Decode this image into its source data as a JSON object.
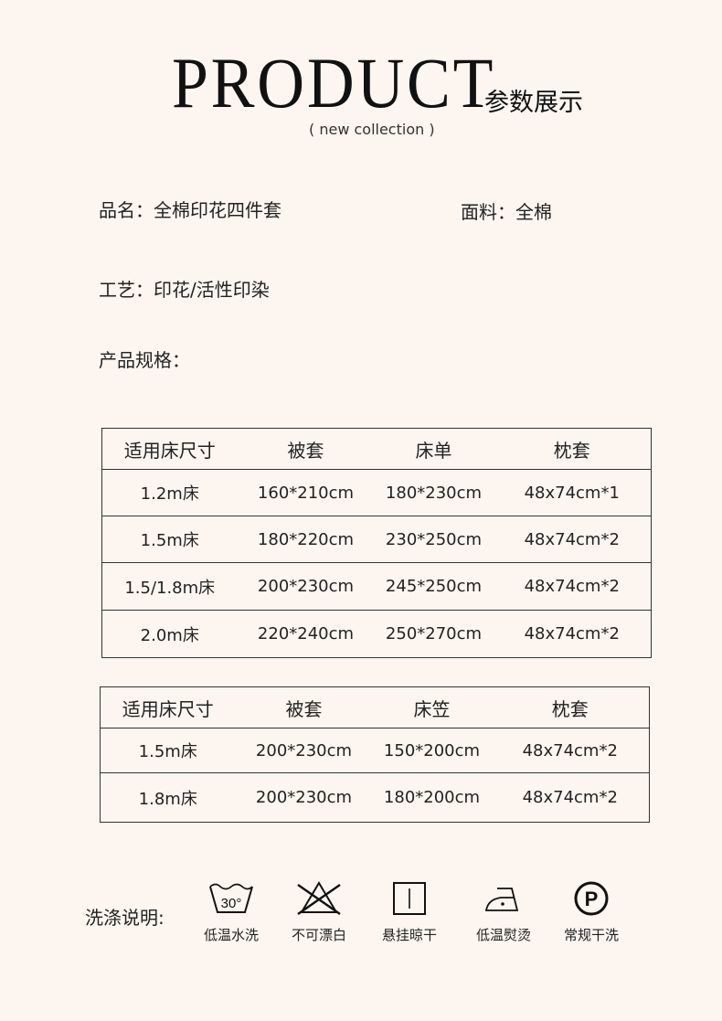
{
  "header": {
    "logo_text": "PRODUCT",
    "subtitle": "( new collection )",
    "title": "参数展示"
  },
  "fields": {
    "name": "品名：全棉印花四件套",
    "material": "面料：全棉",
    "craft": "工艺：印花/活性印染",
    "spec_label": "产品规格："
  },
  "table1": {
    "headers": [
      "适用床尺寸",
      "被套",
      "床单",
      "枕套"
    ],
    "rows": [
      [
        "1.2m床",
        "160*210cm",
        "180*230cm",
        "48x74cm*1"
      ],
      [
        "1.5m床",
        "180*220cm",
        "230*250cm",
        "48x74cm*2"
      ],
      [
        "1.5/1.8m床",
        "200*230cm",
        "245*250cm",
        "48x74cm*2"
      ],
      [
        "2.0m床",
        "220*240cm",
        "250*270cm",
        "48x74cm*2"
      ]
    ]
  },
  "table2": {
    "headers": [
      "适用床尺寸",
      "被套",
      "床笠",
      "枕套"
    ],
    "rows": [
      [
        "1.5m床",
        "200*230cm",
        "150*200cm",
        "48x74cm*2"
      ],
      [
        "1.8m床",
        "200*230cm",
        "180*200cm",
        "48x74cm*2"
      ]
    ]
  },
  "care": {
    "label": "洗涤说明:",
    "items": [
      {
        "icon": "wash-30-icon",
        "label": "低温水洗",
        "temp": "30°"
      },
      {
        "icon": "no-bleach-icon",
        "label": "不可漂白"
      },
      {
        "icon": "hang-dry-icon",
        "label": "悬挂晾干"
      },
      {
        "icon": "low-iron-icon",
        "label": "低温熨烫"
      },
      {
        "icon": "dry-clean-p-icon",
        "label": "常规干洗",
        "letter": "P"
      }
    ]
  }
}
